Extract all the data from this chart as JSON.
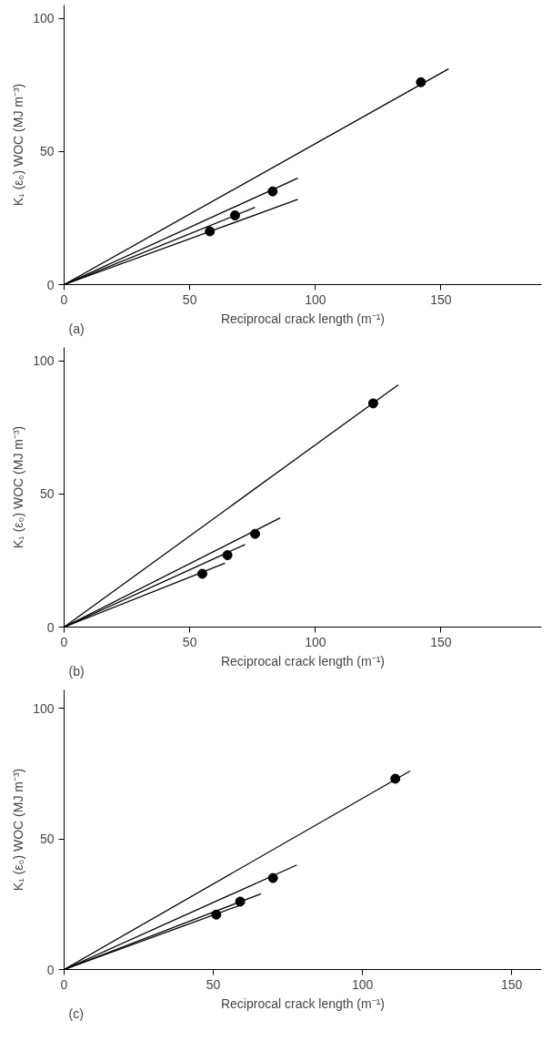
{
  "chart_data": [
    {
      "type": "line",
      "xlabel": "Reciprocal crack length (m⁻¹)",
      "ylabel": "K₁ (ε₀) WOC (MJ m⁻³)",
      "annotations": [
        "(a)"
      ],
      "xlim": [
        0,
        190
      ],
      "ylim": [
        0,
        105
      ],
      "xticks": [
        0,
        50,
        100,
        150
      ],
      "yticks": [
        0,
        50,
        100
      ],
      "grid": false,
      "series": [
        {
          "color": "#000000",
          "marker": "none",
          "x": [
            0,
            93
          ],
          "values": [
            0,
            32
          ]
        },
        {
          "color": "#000000",
          "marker": "none",
          "x": [
            0,
            76
          ],
          "values": [
            0,
            29
          ]
        },
        {
          "color": "#000000",
          "marker": "none",
          "x": [
            0,
            93
          ],
          "values": [
            0,
            40
          ]
        },
        {
          "color": "#000000",
          "marker": "none",
          "x": [
            0,
            153
          ],
          "values": [
            0,
            81
          ]
        },
        {
          "type": "scatter",
          "marker": "circle",
          "color": "#000000",
          "x": [
            58,
            68,
            83,
            142
          ],
          "values": [
            20,
            26,
            35,
            76
          ]
        }
      ]
    },
    {
      "type": "line",
      "xlabel": "Reciprocal crack length (m⁻¹)",
      "ylabel": "K₁ (ε₀) WOC (MJ m⁻³)",
      "annotations": [
        "(b)"
      ],
      "xlim": [
        0,
        190
      ],
      "ylim": [
        0,
        105
      ],
      "xticks": [
        0,
        50,
        100,
        150
      ],
      "yticks": [
        0,
        50,
        100
      ],
      "grid": false,
      "series": [
        {
          "color": "#000000",
          "marker": "none",
          "x": [
            0,
            64
          ],
          "values": [
            0,
            24
          ]
        },
        {
          "color": "#000000",
          "marker": "none",
          "x": [
            0,
            72
          ],
          "values": [
            0,
            31
          ]
        },
        {
          "color": "#000000",
          "marker": "none",
          "x": [
            0,
            86
          ],
          "values": [
            0,
            41
          ]
        },
        {
          "color": "#000000",
          "marker": "none",
          "x": [
            0,
            133
          ],
          "values": [
            0,
            91
          ]
        },
        {
          "type": "scatter",
          "marker": "circle",
          "color": "#000000",
          "x": [
            55,
            65,
            76,
            123
          ],
          "values": [
            20,
            27,
            35,
            84
          ]
        }
      ]
    },
    {
      "type": "line",
      "xlabel": "Reciprocal crack length (m⁻¹)",
      "ylabel": "K₁ (ε₀) WOC (MJ m⁻³)",
      "annotations": [
        "(c)"
      ],
      "xlim": [
        0,
        160
      ],
      "ylim": [
        0,
        107
      ],
      "xticks": [
        0,
        50,
        100,
        150
      ],
      "yticks": [
        0,
        50,
        100
      ],
      "grid": false,
      "series": [
        {
          "color": "#000000",
          "marker": "none",
          "x": [
            0,
            60
          ],
          "values": [
            0,
            25
          ]
        },
        {
          "color": "#000000",
          "marker": "none",
          "x": [
            0,
            66
          ],
          "values": [
            0,
            29
          ]
        },
        {
          "color": "#000000",
          "marker": "none",
          "x": [
            0,
            78
          ],
          "values": [
            0,
            40
          ]
        },
        {
          "color": "#000000",
          "marker": "none",
          "x": [
            0,
            116
          ],
          "values": [
            0,
            76
          ]
        },
        {
          "type": "scatter",
          "marker": "circle",
          "color": "#000000",
          "x": [
            51,
            59,
            70,
            111
          ],
          "values": [
            21,
            26,
            35,
            73
          ]
        }
      ]
    }
  ]
}
